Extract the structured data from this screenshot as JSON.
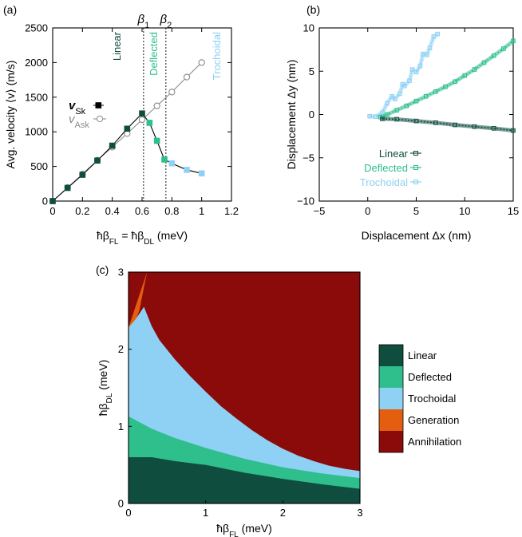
{
  "colors": {
    "linear": "#0f4d3f",
    "deflected": "#2ebf8d",
    "trochoidal": "#8ed1f5",
    "generation": "#e35e0e",
    "annihilation": "#8b0a0a",
    "ask": "#8a8a8a"
  },
  "chart_data": [
    {
      "panel": "(a)",
      "type": "line",
      "xlabel": "ħβ_FL = ħβ_DL (meV)",
      "ylabel": "Avg. velocity ⟨v⟩ (m/s)",
      "xlim": [
        0,
        1.2
      ],
      "ylim": [
        0,
        2500
      ],
      "xticks": [
        0,
        0.2,
        0.4,
        0.6,
        0.8,
        1,
        1.2
      ],
      "xtick_labels": [
        "0",
        "0.2",
        "0.4",
        "0.6",
        "0.8",
        "1",
        "1.2"
      ],
      "yticks": [
        0,
        500,
        1000,
        1500,
        2000,
        2500
      ],
      "ytick_labels": [
        "0",
        "500",
        "1000",
        "1500",
        "2000",
        "2500"
      ],
      "vlines": [
        {
          "label": "β1",
          "x": 0.61
        },
        {
          "label": "β2",
          "x": 0.76
        }
      ],
      "region_labels": [
        {
          "text": "Linear",
          "color_key": "linear"
        },
        {
          "text": "Deflected",
          "color_key": "deflected"
        },
        {
          "text": "Trochoidal",
          "color_key": "trochoidal"
        }
      ],
      "legend_position": "center-left",
      "series": [
        {
          "name": "v_Sk",
          "legend_main": "v",
          "legend_sub": "Sk",
          "marker": "filled-square",
          "x": [
            0,
            0.1,
            0.2,
            0.3,
            0.4,
            0.5,
            0.6,
            0.65,
            0.7,
            0.75,
            0.8,
            0.9,
            1.0
          ],
          "y": [
            0,
            190,
            380,
            585,
            800,
            1045,
            1265,
            1130,
            870,
            600,
            545,
            450,
            400
          ],
          "regime": [
            "linear",
            "linear",
            "linear",
            "linear",
            "linear",
            "linear",
            "linear",
            "deflected",
            "deflected",
            "deflected",
            "trochoidal",
            "trochoidal",
            "trochoidal"
          ]
        },
        {
          "name": "v_Ask",
          "legend_main": "v",
          "legend_sub": "Ask",
          "marker": "open-circle",
          "x": [
            0,
            0.1,
            0.2,
            0.3,
            0.4,
            0.5,
            0.6,
            0.7,
            0.8,
            0.9,
            1.0
          ],
          "y": [
            0,
            195,
            390,
            590,
            780,
            975,
            1175,
            1375,
            1575,
            1790,
            2000
          ]
        }
      ]
    },
    {
      "panel": "(b)",
      "type": "line",
      "xlabel": "Displacement Δx (nm)",
      "ylabel": "Displacement Δy (nm)",
      "xlim": [
        -5,
        15
      ],
      "ylim": [
        -10,
        10
      ],
      "xticks": [
        -5,
        0,
        5,
        10,
        15
      ],
      "xtick_labels": [
        "−5",
        "0",
        "5",
        "10",
        "15"
      ],
      "yticks": [
        -10,
        -5,
        0,
        5,
        10
      ],
      "ytick_labels": [
        "−10",
        "−5",
        "0",
        "5",
        "10"
      ],
      "legend_position": "bottom-left",
      "series": [
        {
          "name": "Linear",
          "color_key": "linear",
          "x": [
            1.5,
            3,
            5,
            7,
            9,
            11,
            13,
            15
          ],
          "y": [
            -0.5,
            -0.55,
            -0.75,
            -0.95,
            -1.2,
            -1.4,
            -1.6,
            -1.85
          ]
        },
        {
          "name": "Deflected",
          "color_key": "deflected",
          "x": [
            1.3,
            2,
            3,
            4,
            5,
            6,
            7,
            8,
            9,
            10,
            11,
            12,
            13,
            14,
            15
          ],
          "y": [
            -0.3,
            0,
            0.5,
            1.0,
            1.55,
            2.1,
            2.65,
            3.2,
            3.8,
            4.5,
            5.2,
            6.0,
            6.8,
            7.6,
            8.5
          ]
        },
        {
          "name": "Trochoidal",
          "color_key": "trochoidal",
          "x": [
            0.2,
            0.8,
            1.5,
            2.0,
            2.5,
            2.8,
            3.3,
            3.6,
            3.8,
            4.3,
            4.6,
            5.0,
            5.4,
            5.7,
            6.1,
            6.4,
            6.8,
            7.2
          ],
          "y": [
            -0.2,
            -0.25,
            0.2,
            1.3,
            2.1,
            1.8,
            2.4,
            3.5,
            3.3,
            3.9,
            5.2,
            4.9,
            5.6,
            7.0,
            6.9,
            7.7,
            9.0,
            9.3
          ]
        }
      ]
    },
    {
      "panel": "(c)",
      "type": "heatmap",
      "xlabel": "ħβ_FL (meV)",
      "ylabel": "ħβ_DL (meV)",
      "xlim": [
        0,
        3
      ],
      "ylim": [
        0,
        3
      ],
      "xticks": [
        0,
        1,
        2,
        3
      ],
      "xtick_labels": [
        "0",
        "1",
        "2",
        "3"
      ],
      "yticks": [
        0,
        1,
        2,
        3
      ],
      "ytick_labels": [
        "0",
        "1",
        "2",
        "3"
      ],
      "legend_position": "right",
      "legend": [
        {
          "label": "Linear",
          "color_key": "linear"
        },
        {
          "label": "Deflected",
          "color_key": "deflected"
        },
        {
          "label": "Trochoidal",
          "color_key": "trochoidal"
        },
        {
          "label": "Generation",
          "color_key": "generation"
        },
        {
          "label": "Annihilation",
          "color_key": "annihilation"
        }
      ],
      "boundaries": {
        "linear_upper": {
          "x": [
            0,
            0.3,
            0.6,
            1.0,
            1.5,
            2.0,
            2.5,
            3.0
          ],
          "y": [
            0.6,
            0.6,
            0.55,
            0.5,
            0.4,
            0.32,
            0.25,
            0.19
          ]
        },
        "deflected_upper": {
          "x": [
            0,
            0.3,
            0.6,
            1.0,
            1.5,
            2.0,
            2.5,
            3.0
          ],
          "y": [
            1.13,
            0.97,
            0.85,
            0.72,
            0.58,
            0.47,
            0.39,
            0.33
          ]
        },
        "trochoidal_upper": {
          "x": [
            0,
            0.1,
            0.2,
            0.3,
            0.4,
            0.6,
            0.8,
            1.0,
            1.2,
            1.4,
            1.6,
            1.8,
            2.0,
            2.2,
            2.4,
            2.6,
            2.8,
            3.0
          ],
          "y": [
            2.28,
            2.4,
            2.55,
            2.3,
            2.12,
            1.87,
            1.65,
            1.45,
            1.26,
            1.1,
            0.95,
            0.82,
            0.71,
            0.62,
            0.55,
            0.49,
            0.45,
            0.42
          ]
        },
        "generation": {
          "x": [
            0,
            0.07,
            0.14,
            0.2,
            0.24
          ],
          "y": [
            2.28,
            2.31,
            2.5,
            2.8,
            3.0
          ]
        }
      }
    }
  ]
}
